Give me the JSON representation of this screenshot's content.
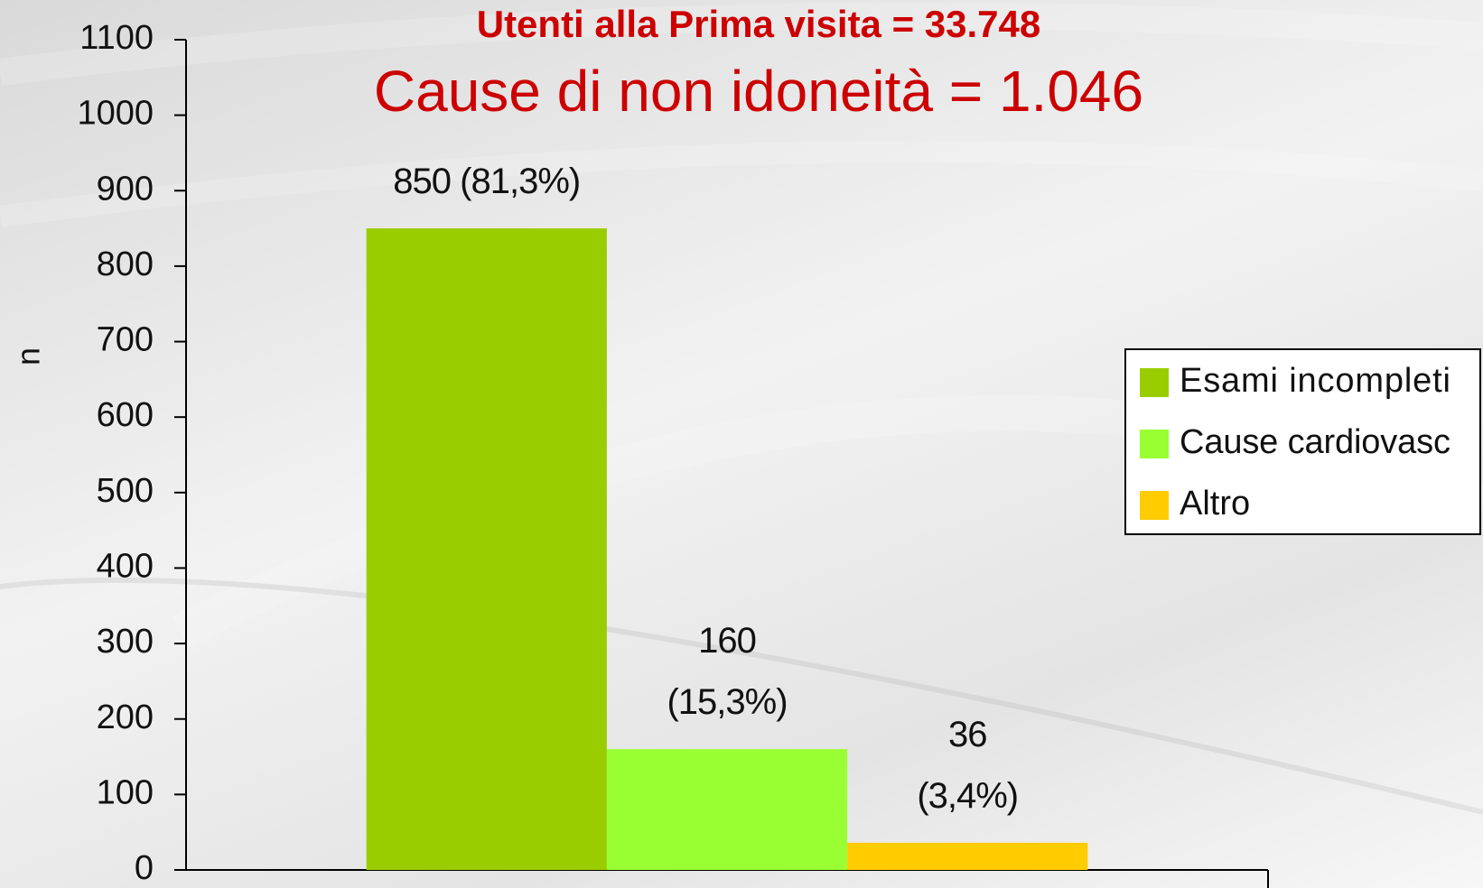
{
  "chart_data": {
    "type": "bar",
    "subtitle": "Utenti alla Prima visita = 33.748",
    "title": "Cause di non idoneità = 1.046",
    "y_label": "n",
    "series": [
      {
        "name": "Esami incompleti",
        "color": "#9acd00",
        "values": [
          850
        ],
        "value_labels": [
          "850 (81,3%)"
        ]
      },
      {
        "name": "Cause cardiovasc",
        "color": "#99ff33",
        "values": [
          160
        ],
        "value_labels": [
          "160\n(15,3%)"
        ]
      },
      {
        "name": "Altro",
        "color": "#ffcc00",
        "values": [
          36
        ],
        "value_labels": [
          "36\n(3,4%)"
        ]
      }
    ],
    "ylim": [
      0,
      1100
    ],
    "yticks": [
      0,
      100,
      200,
      300,
      400,
      500,
      600,
      700,
      800,
      900,
      1000,
      1100
    ],
    "legend": "right"
  }
}
